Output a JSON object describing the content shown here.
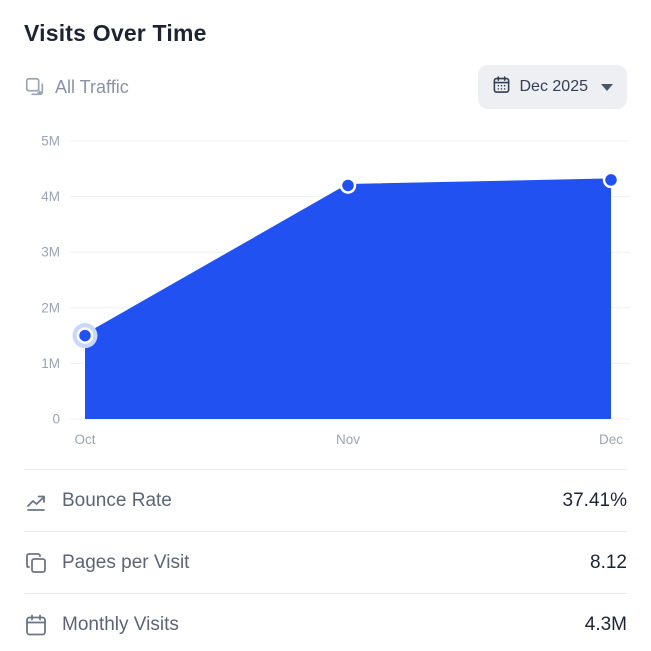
{
  "header": {
    "title": "Visits Over Time",
    "traffic_filter": "All Traffic",
    "period_selector": {
      "label": "Dec 2025",
      "icon": "calendar-icon",
      "caret": "chevron-down-icon"
    }
  },
  "chart_data": {
    "type": "area",
    "title": "Visits Over Time",
    "x": [
      "Oct",
      "Nov",
      "Dec"
    ],
    "values": [
      1500000,
      4200000,
      4300000
    ],
    "y_ticks": [
      "5M",
      "4M",
      "3M",
      "2M",
      "1M",
      "0"
    ],
    "ylim": [
      0,
      5000000
    ],
    "grid": "horizontal",
    "legend": "none",
    "highlighted_point": "Oct",
    "fill_color": "#2151F0",
    "halo_color": "#C9D7F8"
  },
  "stats": [
    {
      "icon": "trend-arrow-icon",
      "label": "Bounce Rate",
      "value": "37.41%"
    },
    {
      "icon": "pages-icon",
      "label": "Pages per Visit",
      "value": "8.12"
    },
    {
      "icon": "calendar-icon",
      "label": "Monthly Visits",
      "value": "4.3M"
    }
  ],
  "colors": {
    "accent": "#2151F0",
    "title_text": "#1C2433",
    "muted_text": "#8A93A5",
    "axis_text": "#9AA5B5",
    "divider": "#E8EAEF",
    "dropdown_bg": "#EDEFF3"
  }
}
